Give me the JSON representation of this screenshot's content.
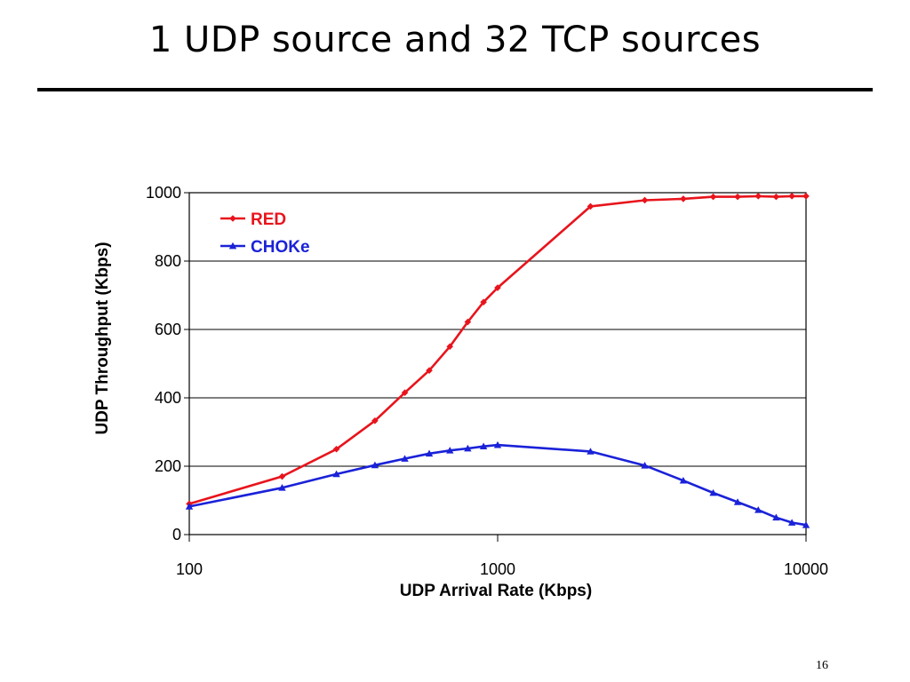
{
  "slide": {
    "title": "1 UDP source and 32 TCP sources",
    "page_number": "16"
  },
  "colors": {
    "RED": "#e8141c",
    "CHOKe": "#1a22d8",
    "axis": "#000000",
    "grid": "#000000"
  },
  "chart_data": {
    "type": "line",
    "title": "",
    "xlabel": "UDP Arrival Rate (Kbps)",
    "ylabel": "UDP Throughput (Kbps)",
    "xscale": "log",
    "xlim": [
      100,
      10000
    ],
    "ylim": [
      0,
      1000
    ],
    "x_ticks": [
      100,
      1000,
      10000
    ],
    "x_tick_labels": [
      "100",
      "1000",
      "10000"
    ],
    "y_ticks": [
      0,
      200,
      400,
      600,
      800,
      1000
    ],
    "y_tick_labels": [
      "0",
      "200",
      "400",
      "600",
      "800",
      "1000"
    ],
    "grid": "horizontal",
    "legend_position": "top-left",
    "series": [
      {
        "name": "RED",
        "marker": "diamond",
        "x": [
          100,
          200,
          300,
          400,
          500,
          600,
          700,
          800,
          900,
          1000,
          2000,
          3000,
          4000,
          5000,
          6000,
          7000,
          8000,
          9000,
          10000
        ],
        "y": [
          90,
          170,
          250,
          333,
          415,
          480,
          550,
          622,
          680,
          722,
          960,
          978,
          982,
          988,
          988,
          990,
          988,
          990,
          990
        ]
      },
      {
        "name": "CHOKe",
        "marker": "triangle",
        "x": [
          100,
          200,
          300,
          400,
          500,
          600,
          700,
          800,
          900,
          1000,
          2000,
          3000,
          4000,
          5000,
          6000,
          7000,
          8000,
          9000,
          10000
        ],
        "y": [
          82,
          137,
          177,
          203,
          222,
          237,
          246,
          252,
          258,
          262,
          243,
          202,
          158,
          122,
          95,
          72,
          50,
          35,
          28
        ]
      }
    ]
  }
}
